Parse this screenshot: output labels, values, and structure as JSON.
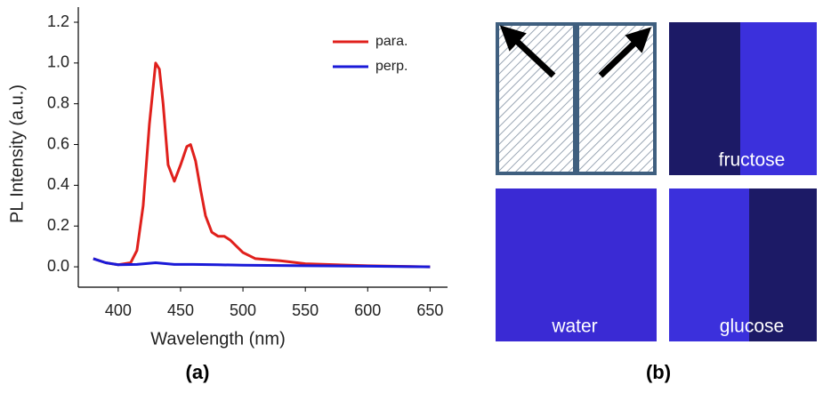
{
  "chart_data": {
    "type": "line",
    "xlabel": "Wavelength (nm)",
    "ylabel": "PL Intensity (a.u.)",
    "xlim": [
      368,
      664
    ],
    "ylim": [
      -0.1,
      1.2
    ],
    "xticks": [
      400,
      450,
      500,
      550,
      600,
      650
    ],
    "yticks": [
      {
        "value": 0,
        "label": "0.0"
      },
      0.2,
      0.4,
      0.6,
      0.8,
      {
        "value": 1,
        "label": "1.0"
      },
      1.2
    ],
    "legend": "upper right",
    "series": [
      {
        "name": "para.",
        "color": "#e0201c",
        "x": [
          380,
          390,
          400,
          410,
          415,
          420,
          425,
          430,
          433,
          436,
          440,
          445,
          450,
          455,
          458,
          462,
          466,
          470,
          475,
          480,
          485,
          490,
          495,
          500,
          510,
          530,
          550,
          600,
          650
        ],
        "values": [
          0.04,
          0.02,
          0.01,
          0.02,
          0.08,
          0.3,
          0.7,
          1.0,
          0.97,
          0.8,
          0.5,
          0.42,
          0.5,
          0.59,
          0.6,
          0.52,
          0.38,
          0.25,
          0.17,
          0.15,
          0.15,
          0.13,
          0.1,
          0.07,
          0.04,
          0.03,
          0.015,
          0.005,
          0.0
        ]
      },
      {
        "name": "perp.",
        "color": "#1a1ad8",
        "x": [
          380,
          390,
          400,
          415,
          430,
          445,
          460,
          480,
          500,
          550,
          600,
          650
        ],
        "values": [
          0.04,
          0.02,
          0.01,
          0.012,
          0.02,
          0.012,
          0.012,
          0.01,
          0.008,
          0.005,
          0.003,
          0.0
        ]
      }
    ]
  },
  "figure_labels": [
    "(a)",
    "(b)"
  ],
  "photos": {
    "labels": [
      "fructose",
      "water",
      "glucose"
    ]
  }
}
